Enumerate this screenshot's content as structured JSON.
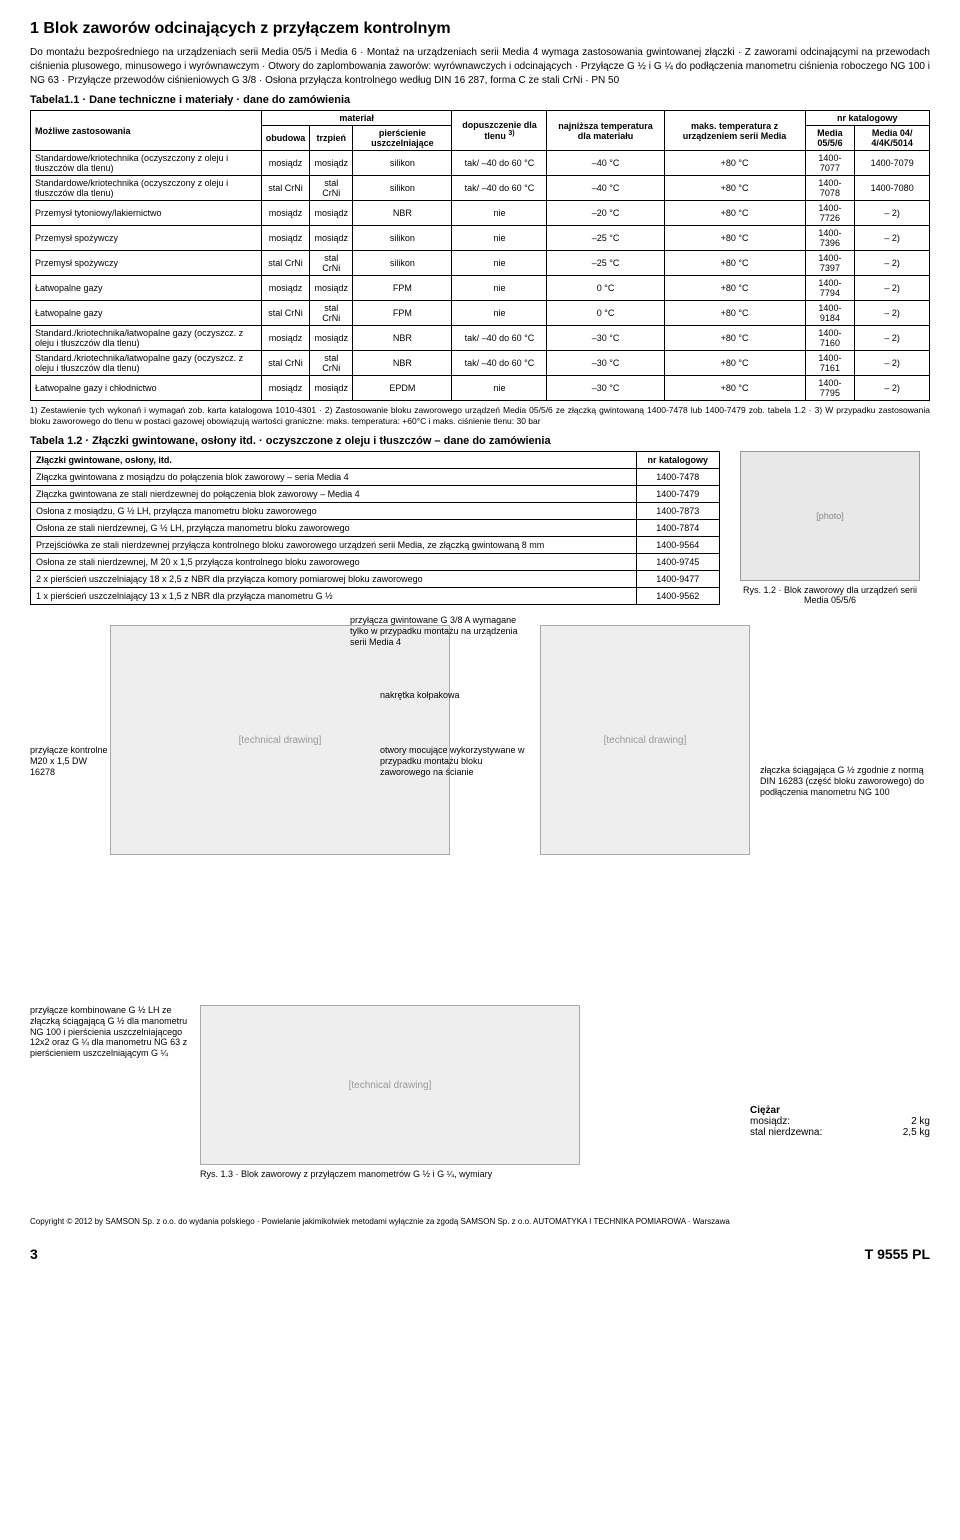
{
  "title": "1 Blok zaworów odcinających z przyłączem kontrolnym",
  "intro": "Do montażu bezpośredniego na urządzeniach serii Media 05/5 i Media 6 · Montaż na urządzeniach serii Media 4 wymaga zastosowania gwintowanej złączki · Z zaworami odcinającymi na przewodach ciśnienia plusowego, minusowego i wyrównawczym · Otwory do zaplombowania zaworów: wyrównawczych i odcinających · Przyłącze G ½ i G ¼ do podłączenia manometru ciśnienia roboczego NG 100 i NG 63 · Przyłącze przewodów ciśnieniowych G 3/8 · Osłona przyłącza kontrolnego według DIN 16 287, forma C ze stali CrNi · PN 50",
  "table1_title": "Tabela1.1 · Dane techniczne i materiały · dane do zamówienia",
  "t1_headers": {
    "app": "Możliwe zastosowania",
    "material": "materiał",
    "obudowa": "obudowa",
    "trzpien": "trzpień",
    "seal": "pierścienie uszczelniające",
    "oxygen": "dopuszczenie dla tlenu",
    "oxygen_note": "3)",
    "mintemp": "najniższa temperatura dla materiału",
    "maxtemp": "maks. temperatura z urządzeniem serii Media",
    "catalog": "nr katalogowy",
    "media056": "Media 05/5/6",
    "media04": "Media 04/ 4/4K/5014"
  },
  "t1_rows": [
    {
      "app": "Standardowe/kriotechnika (oczyszczony z oleju i tłuszczów dla tlenu)",
      "c1": "mosiądz",
      "c2": "mosiądz",
      "c3": "silikon",
      "c4": "tak/ –40 do 60 °C",
      "c5": "–40 °C",
      "c6": "+80 °C",
      "c7": "1400-7077",
      "c8": "1400-7079"
    },
    {
      "app": "Standardowe/kriotechnika (oczyszczony z oleju i tłuszczów dla tlenu)",
      "c1": "stal CrNi",
      "c2": "stal CrNi",
      "c3": "silikon",
      "c4": "tak/ –40 do 60 °C",
      "c5": "–40 °C",
      "c6": "+80 °C",
      "c7": "1400-7078",
      "c8": "1400-7080"
    },
    {
      "app": "Przemysł tytoniowy/lakiernictwo",
      "c1": "mosiądz",
      "c2": "mosiądz",
      "c3": "NBR",
      "c4": "nie",
      "c5": "–20 °C",
      "c6": "+80 °C",
      "c7": "1400-7726",
      "c8": "– 2)"
    },
    {
      "app": "Przemysł spożywczy",
      "c1": "mosiądz",
      "c2": "mosiądz",
      "c3": "silikon",
      "c4": "nie",
      "c5": "–25 °C",
      "c6": "+80 °C",
      "c7": "1400-7396",
      "c8": "– 2)"
    },
    {
      "app": "Przemysł spożywczy",
      "c1": "stal CrNi",
      "c2": "stal CrNi",
      "c3": "silikon",
      "c4": "nie",
      "c5": "–25 °C",
      "c6": "+80 °C",
      "c7": "1400-7397",
      "c8": "– 2)"
    },
    {
      "app": "Łatwopalne gazy",
      "c1": "mosiądz",
      "c2": "mosiądz",
      "c3": "FPM",
      "c4": "nie",
      "c5": "0 °C",
      "c6": "+80 °C",
      "c7": "1400-7794",
      "c8": "– 2)"
    },
    {
      "app": "Łatwopalne gazy",
      "c1": "stal CrNi",
      "c2": "stal CrNi",
      "c3": "FPM",
      "c4": "nie",
      "c5": "0 °C",
      "c6": "+80 °C",
      "c7": "1400-9184",
      "c8": "– 2)"
    },
    {
      "app": "Standard./kriotechnika/łatwopalne gazy (oczyszcz. z oleju i tłuszczów dla tlenu)",
      "c1": "mosiądz",
      "c2": "mosiądz",
      "c3": "NBR",
      "c4": "tak/ –40 do 60 °C",
      "c5": "–30 °C",
      "c6": "+80 °C",
      "c7": "1400-7160",
      "c8": "– 2)"
    },
    {
      "app": "Standard./kriotechnika/łatwopalne gazy (oczyszcz. z oleju i tłuszczów dla tlenu)",
      "c1": "stal CrNi",
      "c2": "stal CrNi",
      "c3": "NBR",
      "c4": "tak/ –40 do 60 °C",
      "c5": "–30 °C",
      "c6": "+80 °C",
      "c7": "1400-7161",
      "c8": "– 2)"
    },
    {
      "app": "Łatwopalne gazy i chłodnictwo",
      "c1": "mosiądz",
      "c2": "mosiądz",
      "c3": "EPDM",
      "c4": "nie",
      "c5": "–30 °C",
      "c6": "+80 °C",
      "c7": "1400-7795",
      "c8": "– 2)"
    }
  ],
  "footnotes1": "1) Zestawienie tych wykonań i wymagań zob. karta katalogowa 1010-4301 · 2) Zastosowanie bloku zaworowego urządzeń Media 05/5/6 ze złączką gwintowaną 1400-7478 lub 1400-7479 zob. tabela 1.2 · 3) W przypadku zastosowania bloku zaworowego do tlenu w postaci gazowej obowiązują wartości graniczne: maks. temperatura: +60°C i maks. ciśnienie tlenu: 30 bar",
  "table2_title": "Tabela 1.2 · Złączki gwintowane, osłony itd. · oczyszczone z oleju i tłuszczów – dane do zamówienia",
  "t2_h1": "Złączki gwintowane, osłony, itd.",
  "t2_h2": "nr katalogowy",
  "t2_rows": [
    {
      "n": "Złączka gwintowana z mosiądzu do połączenia blok zaworowy – seria Media 4",
      "v": "1400-7478"
    },
    {
      "n": "Złączka gwintowana ze stali nierdzewnej do połączenia blok zaworowy – Media 4",
      "v": "1400-7479"
    },
    {
      "n": "Osłona z mosiądzu, G ½ LH, przyłącza manometru bloku zaworowego",
      "v": "1400-7873"
    },
    {
      "n": "Osłona ze stali nierdzewnej, G ½ LH, przyłącza manometru bloku zaworowego",
      "v": "1400-7874"
    },
    {
      "n": "Przejściówka ze stali nierdzewnej przyłącza kontrolnego bloku zaworowego urządzeń serii Media, ze złączką gwintowaną 8 mm",
      "v": "1400-9564"
    },
    {
      "n": "Osłona ze stali nierdzewnej, M 20 x 1,5 przyłącza kontrolnego bloku zaworowego",
      "v": "1400-9745"
    },
    {
      "n": "2 x pierścień uszczelniający 18 x 2,5 z NBR dla przyłącza komory pomiarowej bloku zaworowego",
      "v": "1400-9477"
    },
    {
      "n": "1 x pierścień uszczelniający 13 x 1,5 z NBR dla przyłącza manometru G ½",
      "v": "1400-9562"
    }
  ],
  "fig12": "Rys. 1.2 · Blok zaworowy dla urządzeń serii Media 05/5/6",
  "labels": {
    "l1": "przyłącza gwintowane G 3/8 A wymagane tylko w przypadku montażu na urządzenia serii Media 4",
    "l2": "nakrętka kołpakowa",
    "l3": "przyłącze kontrolne M20 x 1,5 DW 16278",
    "l4": "otwory mocujące wykorzystywane w przypadku montażu bloku zaworowego na ścianie",
    "l5": "złączka ściągająca G ½ zgodnie z normą DIN 16283 (część bloku zaworowego) do podłączenia manometru NG 100"
  },
  "bottom_left": "przyłącze kombinowane G ½ LH ze złączką ściągającą G ½ dla manometru NG 100 i pierścienia uszczelniającego 12x2 oraz G ¼ dla manometru NG 63 z pierścieniem uszczelniającym G ¼",
  "fig13": "Rys. 1.3 · Blok zaworowy z przyłączem manometrów G ½ i G ¼, wymiary",
  "weight_title": "Ciężar",
  "weight_rows": [
    {
      "a": "mosiądz:",
      "b": "2 kg"
    },
    {
      "a": "stal nierdzewna:",
      "b": "2,5 kg"
    }
  ],
  "copyright": "Copyright © 2012 by SAMSON Sp. z o.o. do wydania polskiego · Powielanie jakimikolwiek metodami wyłącznie za zgodą SAMSON Sp. z o.o. AUTOMATYKA I TECHNIKA POMIAROWA · Warszawa",
  "page_num": "3",
  "doc_id": "T 9555 PL"
}
